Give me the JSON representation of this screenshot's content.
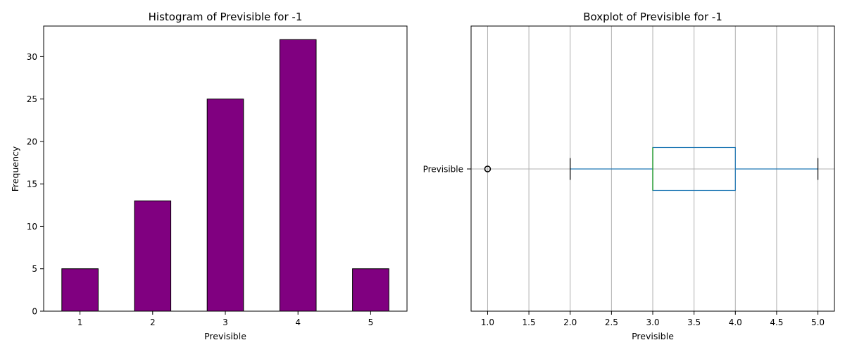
{
  "chart_data": [
    {
      "type": "bar",
      "title": "Histogram of Previsible for -1",
      "xlabel": "Previsible",
      "ylabel": "Frequency",
      "categories": [
        "1",
        "2",
        "3",
        "4",
        "5"
      ],
      "values": [
        5,
        13,
        25,
        32,
        5
      ],
      "ylim": [
        0,
        33.6
      ],
      "yticks": [
        0,
        5,
        10,
        15,
        20,
        25,
        30
      ],
      "bar_color": "#800080",
      "edge_color": "#000000",
      "grid": false
    },
    {
      "type": "boxplot",
      "title": "Boxplot of Previsible for -1",
      "xlabel": "Previsible",
      "category_label": "Previsible",
      "xlim": [
        0.8,
        5.2
      ],
      "xticks": [
        1.0,
        1.5,
        2.0,
        2.5,
        3.0,
        3.5,
        4.0,
        4.5,
        5.0
      ],
      "whisker_low": 2.0,
      "q1": 3.0,
      "median": 3.0,
      "q3": 4.0,
      "whisker_high": 5.0,
      "outliers": [
        1.0
      ],
      "box_color": "#1f77b4",
      "median_color": "#2ca02c",
      "grid": true
    }
  ]
}
